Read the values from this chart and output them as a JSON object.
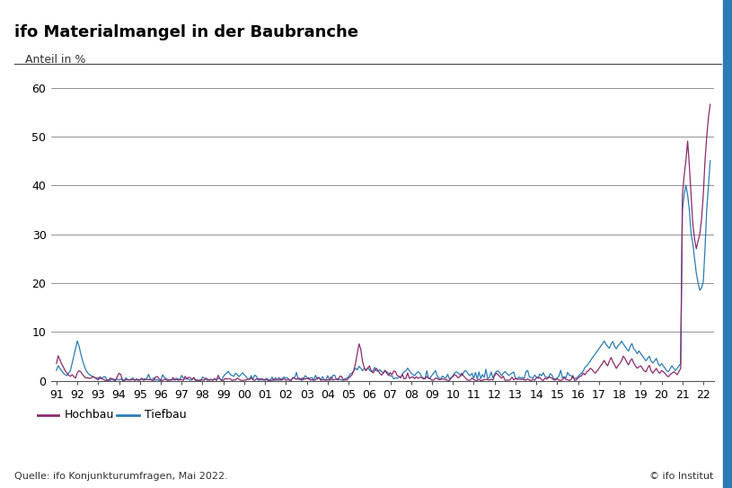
{
  "title": "ifo Materialmangel in der Baubranche",
  "ylabel": "Anteil in %",
  "source": "Quelle: ifo Konjunkturumfragen, Mai 2022.",
  "copyright": "© ifo Institut",
  "ylim": [
    0,
    62
  ],
  "yticks": [
    0,
    10,
    20,
    30,
    40,
    50,
    60
  ],
  "xtick_labels": [
    "91",
    "92",
    "93",
    "94",
    "95",
    "96",
    "97",
    "98",
    "99",
    "00",
    "01",
    "02",
    "03",
    "04",
    "05",
    "06",
    "07",
    "08",
    "09",
    "10",
    "11",
    "12",
    "13",
    "14",
    "15",
    "16",
    "17",
    "18",
    "19",
    "20",
    "21",
    "22"
  ],
  "hochbau_color": "#8B2B6B",
  "tiefbau_color": "#2B7BB5",
  "background_color": "#FFFFFF",
  "border_color": "#2B7BB5",
  "title_fontsize": 13,
  "label_fontsize": 9,
  "legend_fontsize": 9,
  "source_fontsize": 8
}
